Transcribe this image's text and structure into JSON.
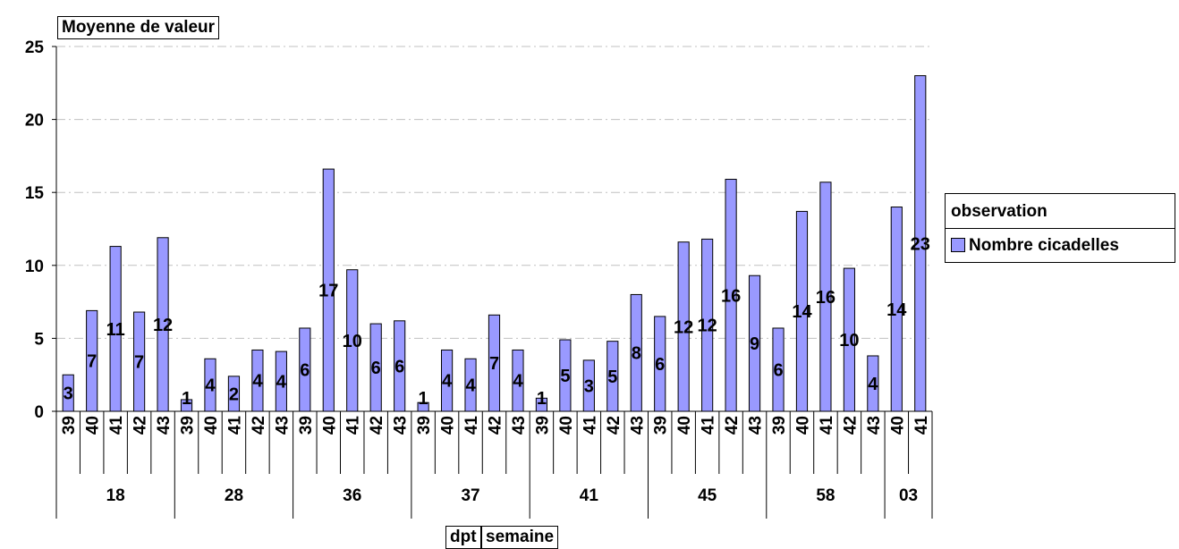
{
  "data_field": "Moyenne de valeur",
  "row_fields": [
    "dpt",
    "semaine"
  ],
  "legend": {
    "title": "observation",
    "series_label": "Nombre cicadelles"
  },
  "colors": {
    "bar": "#9999ff",
    "bar_stroke": "#000000",
    "grid": "#c0c0c0"
  },
  "chart_data": {
    "type": "bar",
    "ylim": [
      0,
      25
    ],
    "yticks": [
      0,
      5,
      10,
      15,
      20,
      25
    ],
    "grid": true,
    "legend_position": "right",
    "groups": [
      {
        "label": "18",
        "weeks": [
          "39",
          "40",
          "41",
          "42",
          "43"
        ]
      },
      {
        "label": "28",
        "weeks": [
          "39",
          "40",
          "41",
          "42",
          "43"
        ]
      },
      {
        "label": "36",
        "weeks": [
          "39",
          "40",
          "41",
          "42",
          "43"
        ]
      },
      {
        "label": "37",
        "weeks": [
          "39",
          "40",
          "41",
          "42",
          "43"
        ]
      },
      {
        "label": "41",
        "weeks": [
          "39",
          "40",
          "41",
          "42",
          "43"
        ]
      },
      {
        "label": "45",
        "weeks": [
          "39",
          "40",
          "41",
          "42",
          "43"
        ]
      },
      {
        "label": "58",
        "weeks": [
          "39",
          "40",
          "41",
          "42",
          "43"
        ]
      },
      {
        "label": "03",
        "weeks": [
          "40",
          "41"
        ]
      }
    ],
    "series": [
      {
        "name": "Nombre cicadelles",
        "values": [
          2.5,
          6.9,
          11.3,
          6.8,
          11.9,
          0.8,
          3.6,
          2.4,
          4.2,
          4.1,
          5.7,
          16.6,
          9.7,
          6.0,
          6.2,
          0.6,
          4.2,
          3.6,
          6.6,
          4.2,
          0.9,
          4.9,
          3.5,
          4.8,
          8.0,
          6.5,
          11.6,
          11.8,
          15.9,
          9.3,
          5.7,
          13.7,
          15.7,
          9.8,
          3.8,
          14.0,
          23.0
        ],
        "data_labels": [
          "3",
          "7",
          "11",
          "7",
          "12",
          "1",
          "4",
          "2",
          "4",
          "4",
          "6",
          "17",
          "10",
          "6",
          "6",
          "1",
          "4",
          "4",
          "7",
          "4",
          "1",
          "5",
          "3",
          "5",
          "8",
          "6",
          "12",
          "12",
          "16",
          "9",
          "6",
          "14",
          "16",
          "10",
          "4",
          "14",
          "23"
        ]
      }
    ]
  }
}
